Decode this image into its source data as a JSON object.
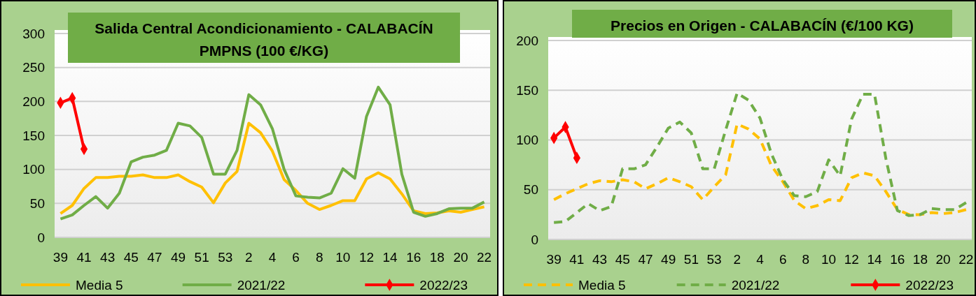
{
  "chart_data": [
    {
      "type": "line",
      "title": "Salida Central Acondicionamiento - CALABACÍN\nPMPNS (100 €/KG)",
      "categories": [
        "39",
        null,
        "41",
        null,
        "43",
        null,
        "45",
        null,
        "47",
        null,
        "49",
        null,
        "51",
        null,
        "53",
        null,
        "2",
        null,
        "4",
        null,
        "6",
        null,
        "8",
        null,
        "10",
        null,
        "12",
        null,
        "14",
        null,
        "16",
        null,
        "18",
        null,
        "20",
        null,
        "22"
      ],
      "series": [
        {
          "name": "Media 5",
          "color": "#ffc000",
          "marker": "none",
          "line_style": "solid",
          "values": [
            35,
            47,
            72,
            88,
            88,
            90,
            90,
            92,
            88,
            88,
            92,
            82,
            74,
            51,
            80,
            97,
            168,
            154,
            127,
            85,
            69,
            50,
            41,
            47,
            54,
            54,
            86,
            95,
            86,
            64,
            39,
            35,
            36,
            39,
            37,
            41,
            45
          ]
        },
        {
          "name": "2021/22",
          "color": "#70ad47",
          "marker": "none",
          "line_style": "solid",
          "values": [
            27,
            33,
            47,
            60,
            43,
            65,
            111,
            118,
            121,
            128,
            168,
            164,
            147,
            93,
            93,
            128,
            210,
            195,
            160,
            100,
            61,
            59,
            58,
            65,
            101,
            87,
            178,
            221,
            195,
            93,
            37,
            31,
            35,
            42,
            43,
            43,
            52
          ]
        },
        {
          "name": "2022/23",
          "color": "#ff0000",
          "marker": "diamond",
          "line_style": "solid",
          "values": [
            198,
            205,
            130,
            null,
            null,
            null,
            null,
            null,
            null,
            null,
            null,
            null,
            null,
            null,
            null,
            null,
            null,
            null,
            null,
            null,
            null,
            null,
            null,
            null,
            null,
            null,
            null,
            null,
            null,
            null,
            null,
            null,
            null,
            null,
            null,
            null,
            null
          ]
        }
      ],
      "ylim": [
        0,
        300
      ],
      "yticks": [
        0,
        50,
        100,
        150,
        200,
        250,
        300
      ],
      "grid": "y",
      "legend": "bottom"
    },
    {
      "type": "line",
      "title": "Precios en Origen - CALABACÍN (€/100 KG)",
      "categories": [
        "39",
        null,
        "41",
        null,
        "43",
        null,
        "45",
        null,
        "47",
        null,
        "49",
        null,
        "51",
        null,
        "53",
        null,
        "2",
        null,
        "4",
        null,
        "6",
        null,
        "8",
        null,
        "10",
        null,
        "12",
        null,
        "14",
        null,
        "16",
        null,
        "18",
        null,
        "20",
        null,
        "22"
      ],
      "series": [
        {
          "name": "Media 5",
          "color": "#ffc000",
          "marker": "none",
          "line_style": "dashed",
          "values": [
            40,
            46,
            51,
            56,
            59,
            58,
            60,
            58,
            51,
            56,
            62,
            58,
            53,
            40,
            53,
            65,
            116,
            111,
            101,
            74,
            58,
            39,
            31,
            34,
            40,
            39,
            62,
            67,
            64,
            48,
            30,
            25,
            25,
            27,
            26,
            27,
            30
          ]
        },
        {
          "name": "2021/22",
          "color": "#70ad47",
          "marker": "none",
          "line_style": "dashed",
          "values": [
            17,
            18,
            27,
            36,
            29,
            33,
            71,
            71,
            75,
            93,
            112,
            118,
            107,
            71,
            71,
            110,
            147,
            140,
            122,
            86,
            60,
            44,
            43,
            48,
            80,
            64,
            121,
            146,
            146,
            81,
            29,
            24,
            25,
            31,
            30,
            30,
            37
          ]
        },
        {
          "name": "2022/23",
          "color": "#ff0000",
          "marker": "diamond",
          "line_style": "solid",
          "values": [
            102,
            113,
            82,
            null,
            null,
            null,
            null,
            null,
            null,
            null,
            null,
            null,
            null,
            null,
            null,
            null,
            null,
            null,
            null,
            null,
            null,
            null,
            null,
            null,
            null,
            null,
            null,
            null,
            null,
            null,
            null,
            null,
            null,
            null,
            null,
            null,
            null
          ]
        }
      ],
      "ylim": [
        0,
        200
      ],
      "yticks": [
        0,
        50,
        100,
        150,
        200
      ],
      "grid": "y",
      "legend": "bottom"
    }
  ]
}
